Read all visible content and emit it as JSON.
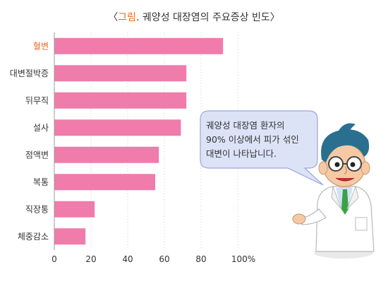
{
  "title": {
    "bracket_open": "〈",
    "prefix": "그림",
    "rest": ". 궤양성 대장염의 주요증상 빈도",
    "bracket_close": "〉"
  },
  "chart_data": {
    "type": "bar",
    "orientation": "horizontal",
    "title": "〈그림. 궤양성 대장염의 주요증상 빈도〉",
    "categories": [
      "혈변",
      "대변절박증",
      "뒤무직",
      "설사",
      "점액변",
      "복통",
      "직장통",
      "체중감소"
    ],
    "values": [
      92,
      72,
      72,
      69,
      57,
      55,
      22,
      17
    ],
    "highlight_category": "혈변",
    "xlim": [
      0,
      100
    ],
    "ticks": [
      "0",
      "20",
      "40",
      "60",
      "80",
      "100%"
    ],
    "tick_values": [
      0,
      20,
      40,
      60,
      80,
      100
    ],
    "grid": true,
    "colors": {
      "bar": "#f07cab",
      "highlight_label": "#e8661a",
      "grid": "#cccccc",
      "axis": "#999999"
    }
  },
  "speech_bubble": {
    "lines": [
      "궤양성 대장염 환자의",
      "90% 이상에서 피가 섞인",
      "대변이 나타납니다."
    ],
    "colors": {
      "fill": "#dde3f7",
      "stroke": "#9aa6d8"
    }
  },
  "illustration": {
    "icon": "doctor-character-icon"
  }
}
